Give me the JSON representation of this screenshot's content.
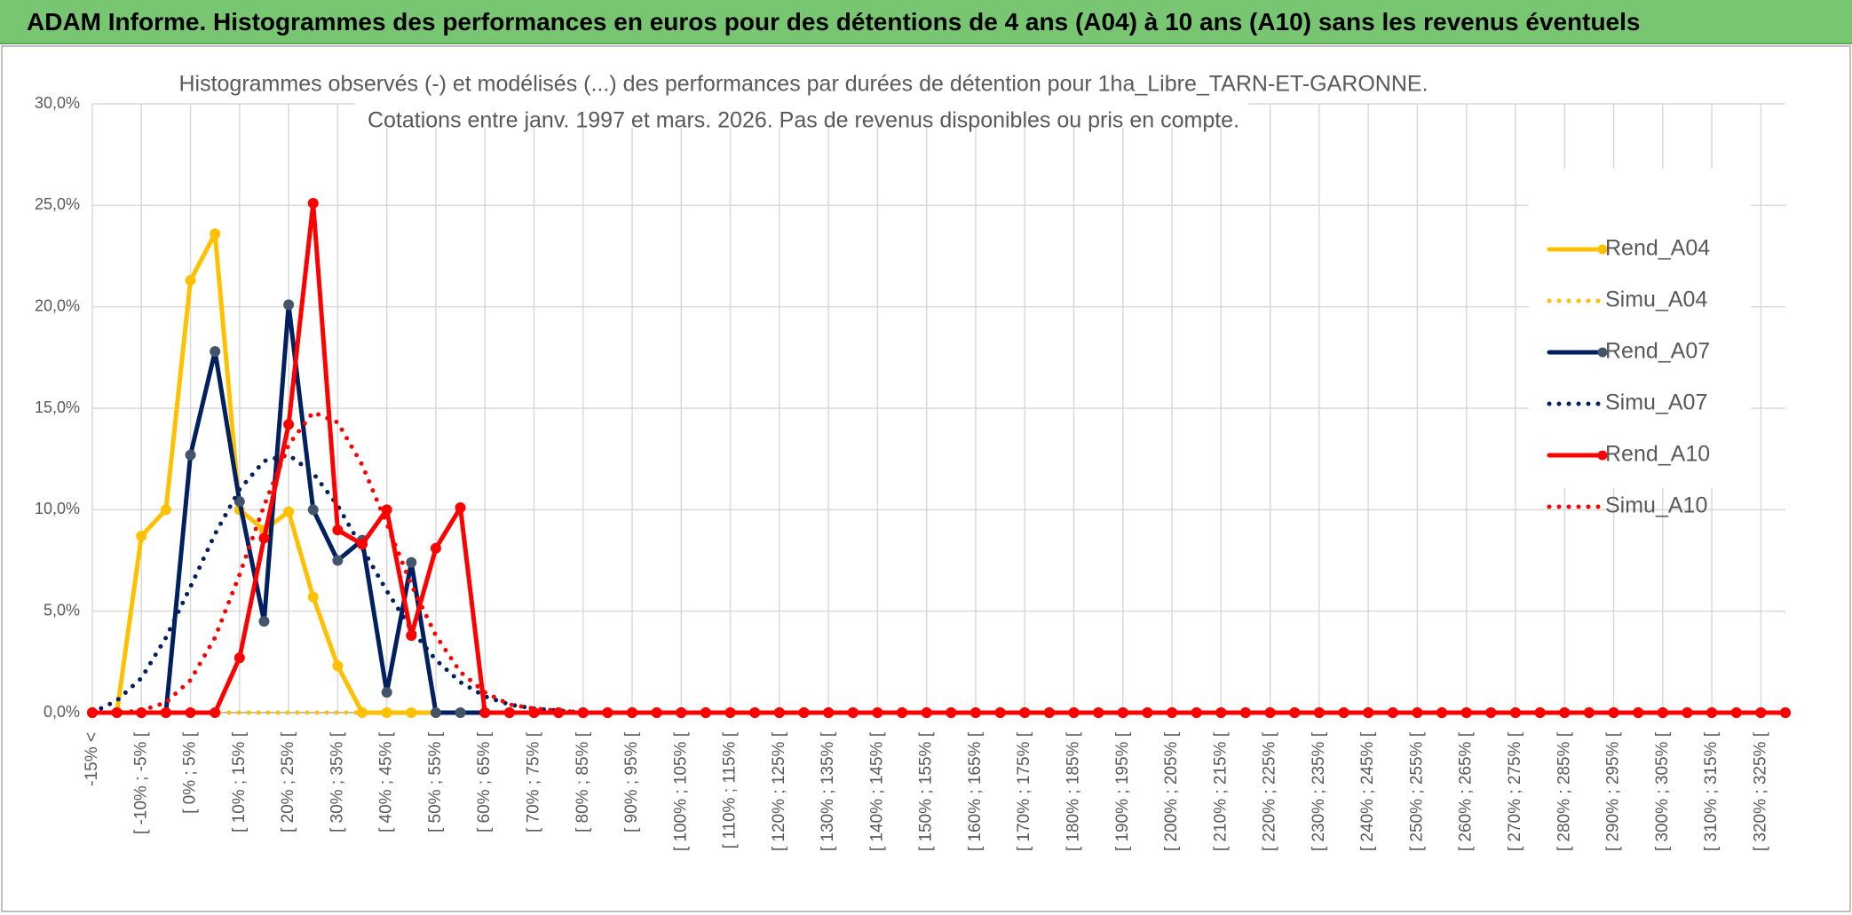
{
  "header": {
    "title": "ADAM Informe. Histogrammes des performances en euros pour des détentions de 4 ans (A04) à 10 ans (A10) sans les revenus éventuels"
  },
  "chart_data": {
    "type": "line",
    "title": [
      "Histogrammes observés (-) et modélisés (...) des performances par durées de détention pour 1ha_Libre_TARN-ET-GARONNE.",
      "Cotations entre janv. 1997 et mars. 2026. Pas de revenus disponibles ou pris en compte."
    ],
    "categories": [
      "-15% <",
      null,
      "[ -10% ; -5% [",
      null,
      "[ 0% ; 5% [",
      null,
      "[ 10% ; 15% [",
      null,
      "[ 20% ; 25% [",
      null,
      "[ 30% ; 35% [",
      null,
      "[ 40% ; 45% [",
      null,
      "[ 50% ; 55% [",
      null,
      "[ 60% ; 65% [",
      null,
      "[ 70% ; 75% [",
      null,
      "[ 80% ; 85% [",
      null,
      "[ 90% ; 95% [",
      null,
      "[ 100% ; 105% [",
      null,
      "[ 110% ; 115% [",
      null,
      "[ 120% ; 125% [",
      null,
      "[ 130% ; 135% [",
      null,
      "[ 140% ; 145% [",
      null,
      "[ 150% ; 155% [",
      null,
      "[ 160% ; 165% [",
      null,
      "[ 170% ; 175% [",
      null,
      "[ 180% ; 185% [",
      null,
      "[ 190% ; 195% [",
      null,
      "[ 200% ; 205% [",
      null,
      "[ 210% ; 215% [",
      null,
      "[ 220% ; 225% [",
      null,
      "[ 230% ; 235% [",
      null,
      "[ 240% ; 245% [",
      null,
      "[ 250% ; 255% [",
      null,
      "[ 260% ; 265% [",
      null,
      "[ 270% ; 275% [",
      null,
      "[ 280% ; 285% [",
      null,
      "[ 290% ; 295% [",
      null,
      "[ 300% ; 305% [",
      null,
      "[ 310% ; 315% [",
      null,
      "[ 320% ; 325% [",
      null
    ],
    "series": [
      {
        "name": "Rend_A04",
        "color": "#ffc000",
        "style": "solid",
        "values": [
          0,
          0,
          8.7,
          10,
          21.3,
          23.6,
          10,
          9,
          9.9,
          5.7,
          2.3,
          0,
          0,
          0,
          0,
          0,
          0,
          0,
          0,
          0,
          0,
          0,
          0,
          0,
          0,
          0,
          0,
          0,
          0,
          0,
          0,
          0,
          0,
          0,
          0,
          0,
          0,
          0,
          0,
          0,
          0,
          0,
          0,
          0,
          0,
          0,
          0,
          0,
          0,
          0,
          0,
          0,
          0,
          0,
          0,
          0,
          0,
          0,
          0,
          0,
          0,
          0,
          0,
          0,
          0,
          0,
          0,
          0,
          0,
          0
        ]
      },
      {
        "name": "Simu_A04",
        "color": "#ffc000",
        "style": "dotted",
        "values": [
          0,
          0,
          0,
          0,
          0,
          0,
          0,
          0,
          0,
          0,
          0,
          0,
          0,
          0,
          0,
          0,
          0,
          0,
          0,
          0,
          0,
          0,
          0,
          0,
          0,
          0,
          0,
          0,
          0,
          0,
          0,
          0,
          0,
          0,
          0,
          0,
          0,
          0,
          0,
          0,
          0,
          0,
          0,
          0,
          0,
          0,
          0,
          0,
          0,
          0,
          0,
          0,
          0,
          0,
          0,
          0,
          0,
          0,
          0,
          0,
          0,
          0,
          0,
          0,
          0,
          0,
          0,
          0,
          0,
          0
        ]
      },
      {
        "name": "Rend_A07",
        "color": "#002060",
        "style": "solid",
        "marker": "#44546a",
        "values": [
          0,
          0,
          0,
          0,
          12.7,
          17.8,
          10.4,
          4.5,
          20.1,
          10,
          7.5,
          8.5,
          1,
          7.4,
          0,
          0,
          0,
          0,
          0,
          0,
          0,
          0,
          0,
          0,
          0,
          0,
          0,
          0,
          0,
          0,
          0,
          0,
          0,
          0,
          0,
          0,
          0,
          0,
          0,
          0,
          0,
          0,
          0,
          0,
          0,
          0,
          0,
          0,
          0,
          0,
          0,
          0,
          0,
          0,
          0,
          0,
          0,
          0,
          0,
          0,
          0,
          0,
          0,
          0,
          0,
          0,
          0,
          0,
          0,
          0
        ]
      },
      {
        "name": "Simu_A07",
        "color": "#002060",
        "style": "dotted",
        "values": [
          0,
          0.6,
          1.7,
          3.7,
          6.2,
          8.8,
          11,
          12.4,
          12.7,
          11.8,
          10.2,
          8.1,
          6,
          4.1,
          2.6,
          1.5,
          0.8,
          0.4,
          0.2,
          0.1,
          0,
          0,
          0,
          0,
          0,
          0,
          0,
          0,
          0,
          0,
          0,
          0,
          0,
          0,
          0,
          0,
          0,
          0,
          0,
          0,
          0,
          0,
          0,
          0,
          0,
          0,
          0,
          0,
          0,
          0,
          0,
          0,
          0,
          0,
          0,
          0,
          0,
          0,
          0,
          0,
          0,
          0,
          0,
          0,
          0,
          0,
          0,
          0,
          0,
          0
        ]
      },
      {
        "name": "Rend_A10",
        "color": "#ff0000",
        "style": "solid",
        "values": [
          0,
          0,
          0,
          0,
          0,
          0,
          2.7,
          8.6,
          14.2,
          25.1,
          9,
          8.3,
          10,
          3.8,
          8.1,
          10.1,
          0,
          0,
          0,
          0,
          0,
          0,
          0,
          0,
          0,
          0,
          0,
          0,
          0,
          0,
          0,
          0,
          0,
          0,
          0,
          0,
          0,
          0,
          0,
          0,
          0,
          0,
          0,
          0,
          0,
          0,
          0,
          0,
          0,
          0,
          0,
          0,
          0,
          0,
          0,
          0,
          0,
          0,
          0,
          0,
          0,
          0,
          0,
          0,
          0,
          0,
          0,
          0,
          0,
          0
        ]
      },
      {
        "name": "Simu_A10",
        "color": "#ff0000",
        "style": "dotted",
        "values": [
          0,
          0,
          0.1,
          0.5,
          1.6,
          3.7,
          6.8,
          10.2,
          13.2,
          14.8,
          14.3,
          12.2,
          9.3,
          6.3,
          3.8,
          2,
          1,
          0.4,
          0.2,
          0.1,
          0,
          0,
          0,
          0,
          0,
          0,
          0,
          0,
          0,
          0,
          0,
          0,
          0,
          0,
          0,
          0,
          0,
          0,
          0,
          0,
          0,
          0,
          0,
          0,
          0,
          0,
          0,
          0,
          0,
          0,
          0,
          0,
          0,
          0,
          0,
          0,
          0,
          0,
          0,
          0,
          0,
          0,
          0,
          0,
          0,
          0,
          0,
          0,
          0,
          0
        ]
      }
    ],
    "ylim": [
      0,
      30
    ],
    "yticks": [
      {
        "value": 0,
        "label": "0,0%"
      },
      {
        "value": 5,
        "label": "5,0%"
      },
      {
        "value": 10,
        "label": "10,0%"
      },
      {
        "value": 15,
        "label": "15,0%"
      },
      {
        "value": 20,
        "label": "20,0%"
      },
      {
        "value": 25,
        "label": "25,0%"
      },
      {
        "value": 30,
        "label": "30,0%"
      }
    ],
    "grid": true,
    "legend": "right"
  }
}
